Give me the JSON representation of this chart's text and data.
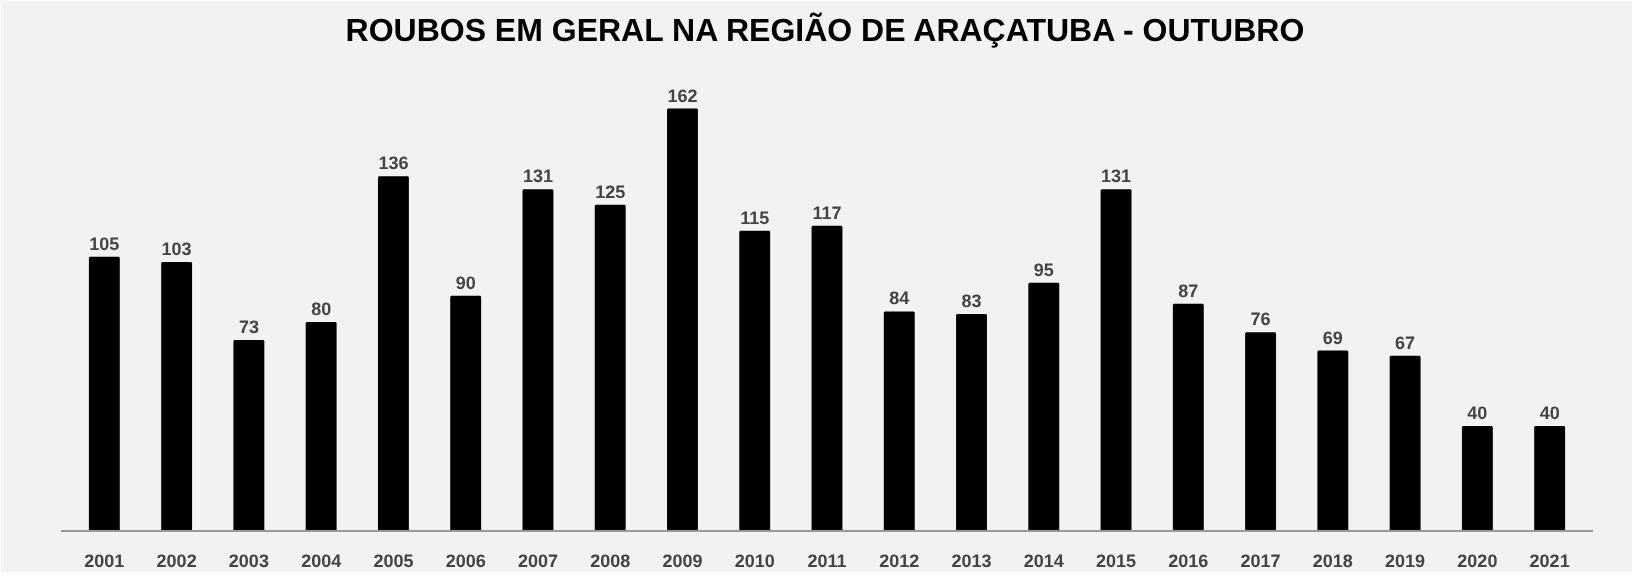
{
  "chart_data": {
    "type": "bar",
    "title": "ROUBOS EM GERAL NA REGIÃO DE ARAÇATUBA - OUTUBRO",
    "categories": [
      "2001",
      "2002",
      "2003",
      "2004",
      "2005",
      "2006",
      "2007",
      "2008",
      "2009",
      "2010",
      "2011",
      "2012",
      "2013",
      "2014",
      "2015",
      "2016",
      "2017",
      "2018",
      "2019",
      "2020",
      "2021"
    ],
    "values": [
      105,
      103,
      73,
      80,
      136,
      90,
      131,
      125,
      162,
      115,
      117,
      84,
      83,
      95,
      131,
      87,
      76,
      69,
      67,
      40,
      40
    ],
    "color": "#000000",
    "data_labels": true
  }
}
